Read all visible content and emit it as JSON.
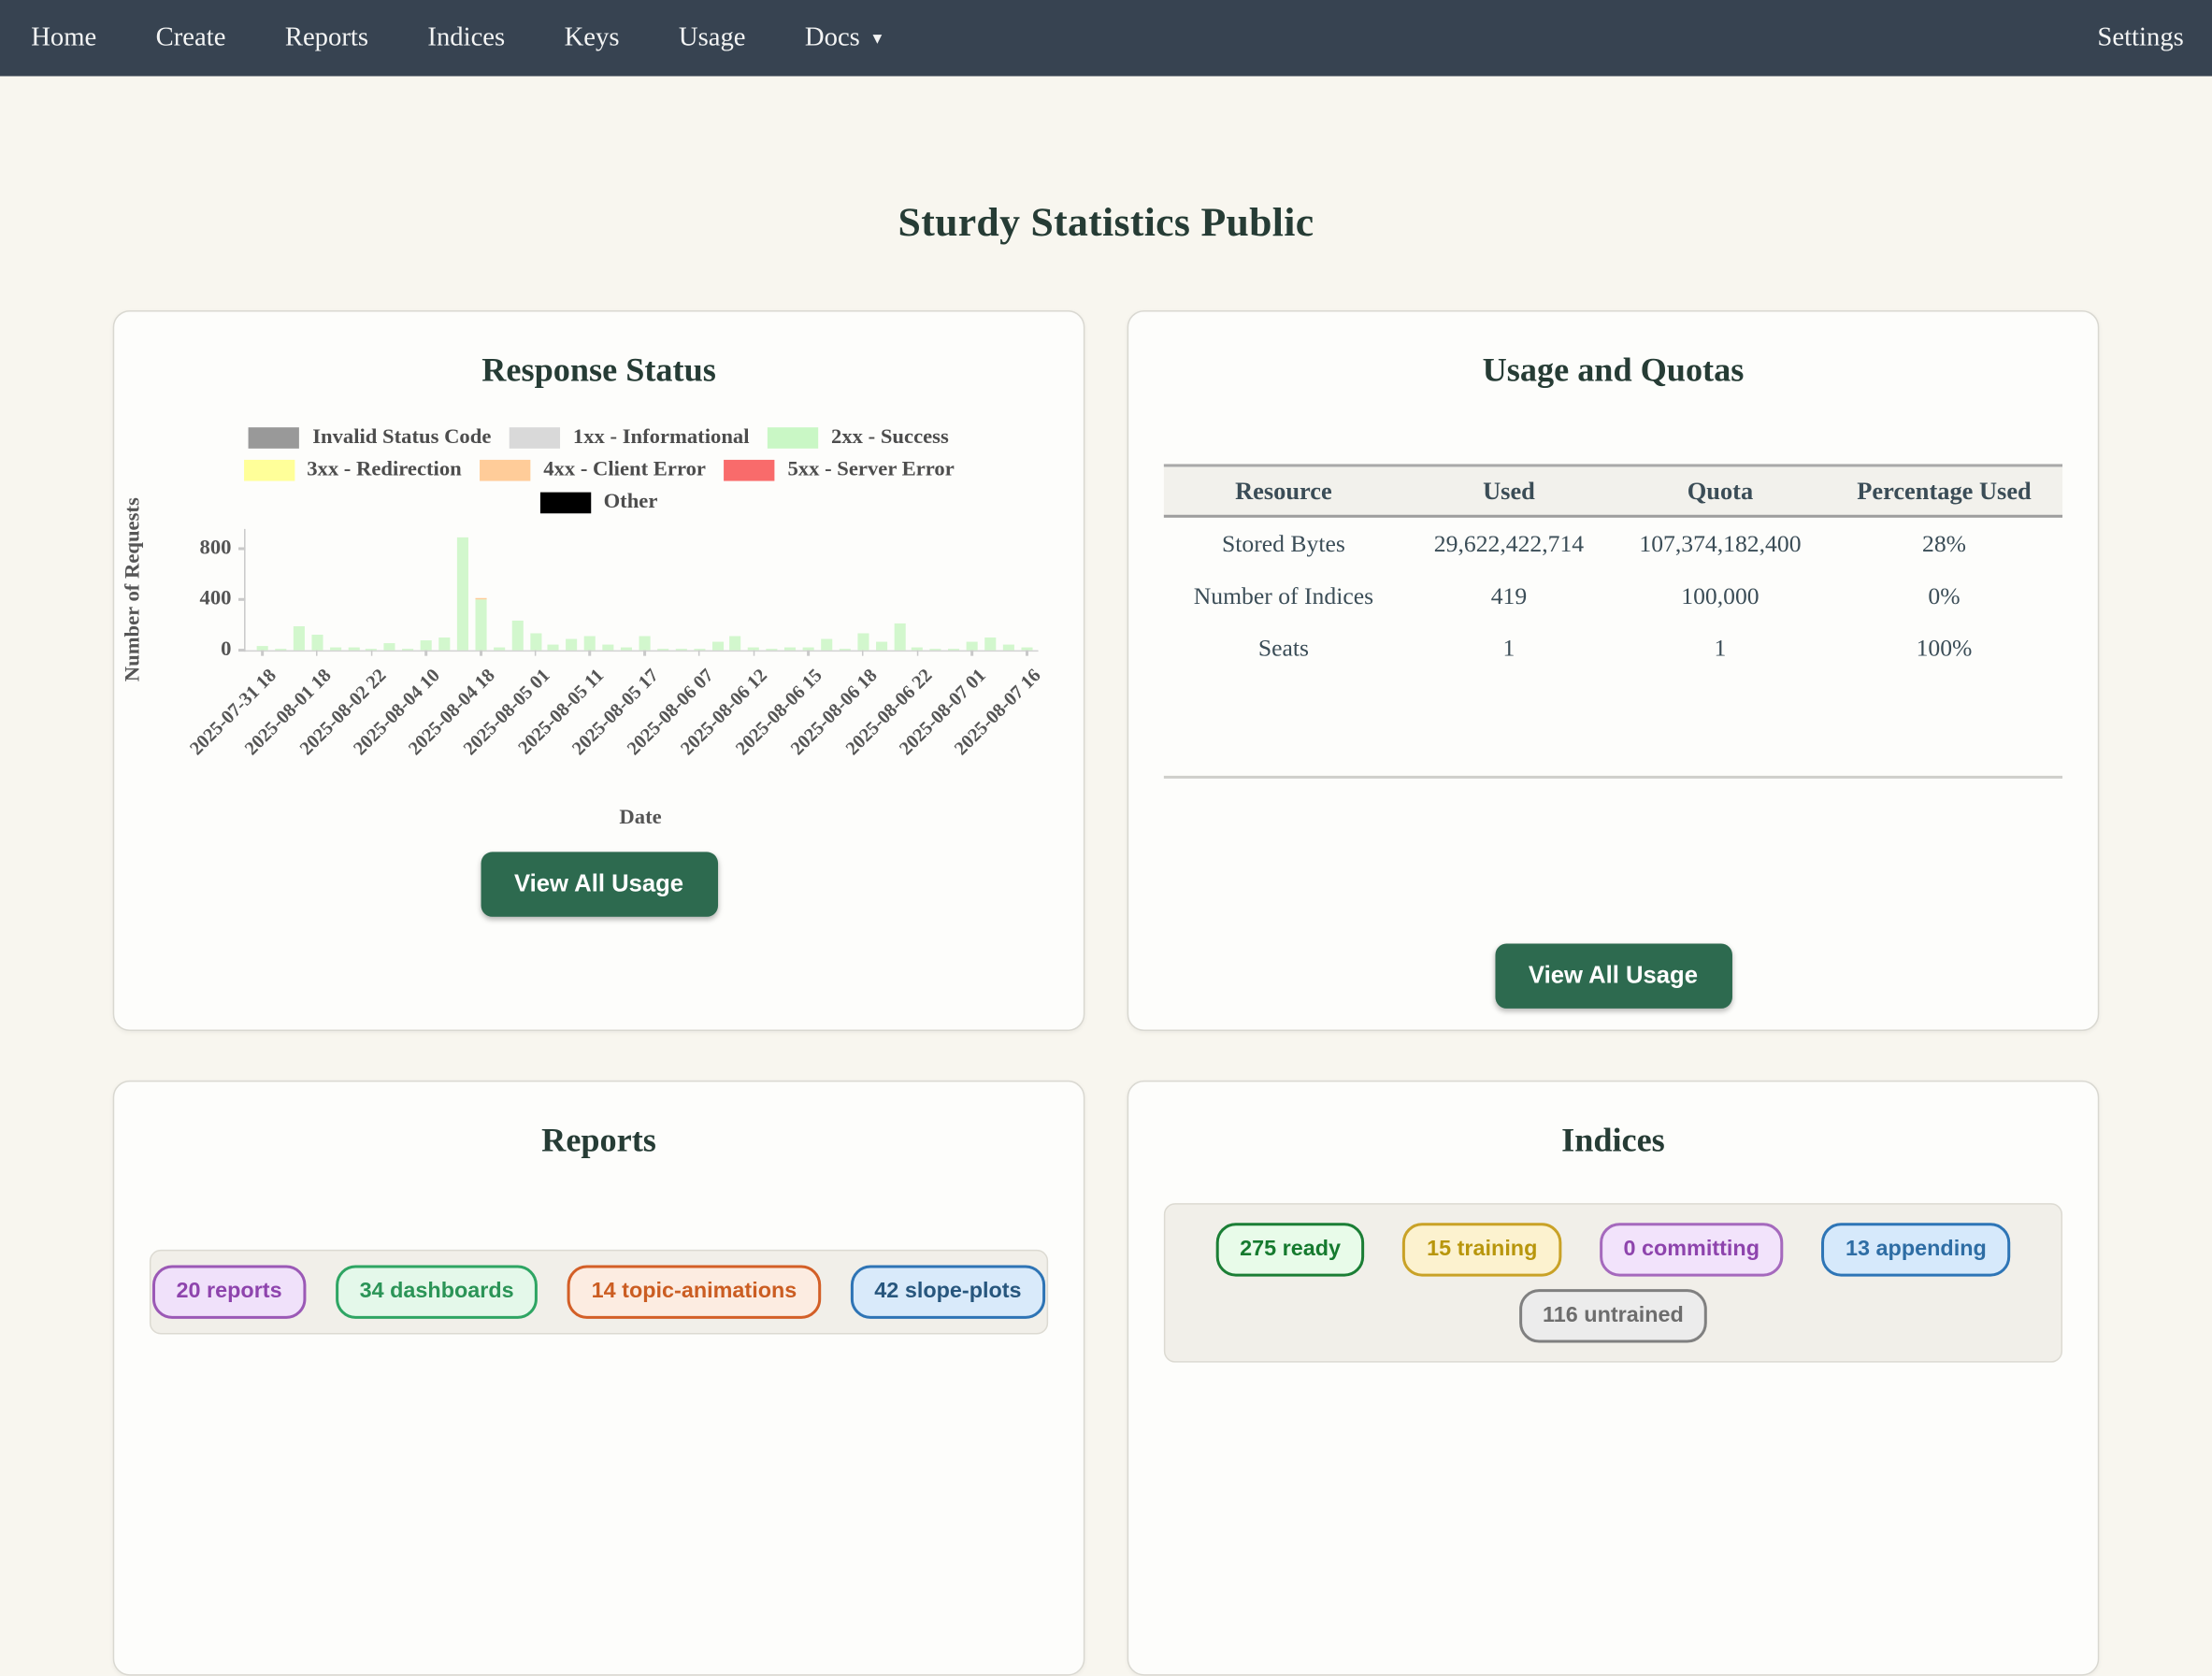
{
  "nav": {
    "items": [
      "Home",
      "Create",
      "Reports",
      "Indices",
      "Keys",
      "Usage",
      "Docs"
    ],
    "docs_caret": "▾",
    "settings": "Settings"
  },
  "page": {
    "title": "Sturdy Statistics Public"
  },
  "colors": {
    "navbar": "#374351",
    "page_background": "#f8f6ef",
    "accent_green": "#2d6a4f",
    "heading": "#263c35",
    "bar_fill": "#d2f7cd"
  },
  "chart_data": {
    "type": "bar",
    "title": "Response Status",
    "xlabel": "Date",
    "ylabel": "Number of Requests",
    "yticks": [
      0,
      400,
      800
    ],
    "ylim": [
      0,
      950
    ],
    "grid": false,
    "legend_position": "top",
    "legend": [
      {
        "label": "Invalid Status Code",
        "color": "#999999"
      },
      {
        "label": "1xx - Informational",
        "color": "#d9d9d9"
      },
      {
        "label": "2xx - Success",
        "color": "#c9f7c5"
      },
      {
        "label": "3xx - Redirection",
        "color": "#ffff99"
      },
      {
        "label": "4xx - Client Error",
        "color": "#ffcc99"
      },
      {
        "label": "5xx - Server Error",
        "color": "#f96b6b"
      },
      {
        "label": "Other",
        "color": "#000000"
      }
    ],
    "x_tick_labels": [
      "2025-07-31 18",
      "2025-08-01 18",
      "2025-08-02 22",
      "2025-08-04 10",
      "2025-08-04 18",
      "2025-08-05 01",
      "2025-08-05 11",
      "2025-08-05 17",
      "2025-08-06 07",
      "2025-08-06 12",
      "2025-08-06 15",
      "2025-08-06 18",
      "2025-08-06 22",
      "2025-08-07 01",
      "2025-08-07 16"
    ],
    "x_tick_every": 3,
    "series": [
      {
        "name": "2xx - Success",
        "values": [
          34,
          7,
          190,
          120,
          24,
          24,
          12,
          60,
          12,
          79,
          96,
          890,
          395,
          24,
          228,
          139,
          48,
          84,
          108,
          43,
          20,
          110,
          15,
          8,
          8,
          72,
          108,
          19,
          8,
          24,
          19,
          84,
          8,
          132,
          67,
          211,
          19,
          14,
          14,
          72,
          101,
          48,
          24
        ]
      },
      {
        "name": "4xx - Client Error",
        "values": [
          0,
          0,
          0,
          0,
          0,
          0,
          0,
          0,
          0,
          0,
          0,
          0,
          12,
          0,
          0,
          0,
          0,
          0,
          0,
          0,
          0,
          0,
          0,
          0,
          0,
          0,
          0,
          0,
          0,
          0,
          0,
          0,
          0,
          0,
          0,
          0,
          0,
          0,
          0,
          0,
          0,
          0,
          0
        ]
      }
    ]
  },
  "cards": {
    "response_status": {
      "title": "Response Status",
      "button": "View All Usage"
    },
    "usage_quotas": {
      "title": "Usage and Quotas",
      "button": "View All Usage",
      "table": {
        "headers": [
          "Resource",
          "Used",
          "Quota",
          "Percentage Used"
        ],
        "rows": [
          [
            "Stored Bytes",
            "29,622,422,714",
            "107,374,182,400",
            "28%"
          ],
          [
            "Number of Indices",
            "419",
            "100,000",
            "0%"
          ],
          [
            "Seats",
            "1",
            "1",
            "100%"
          ]
        ]
      }
    },
    "reports": {
      "title": "Reports",
      "badges": [
        {
          "label": "20 reports",
          "text": "#8e44ad",
          "border": "#9b59b6",
          "bg": "#f0e1fa"
        },
        {
          "label": "34 dashboards",
          "text": "#2b9457",
          "border": "#2ea563",
          "bg": "#e4f8ea"
        },
        {
          "label": "14 topic-animations",
          "text": "#cb5d22",
          "border": "#d35f27",
          "bg": "#fcece1"
        },
        {
          "label": "42 slope-plots",
          "text": "#27567d",
          "border": "#2e74b5",
          "bg": "#d9eafa"
        }
      ]
    },
    "indices": {
      "title": "Indices",
      "badges_row1": [
        {
          "label": "275 ready",
          "text": "#157a2e",
          "border": "#1b7e35",
          "bg": "#e8fbe9"
        },
        {
          "label": "15 training",
          "text": "#b8960c",
          "border": "#c9a227",
          "bg": "#fcf2cf"
        },
        {
          "label": "0 committing",
          "text": "#8e44ad",
          "border": "#a569bd",
          "bg": "#f2e3fb"
        },
        {
          "label": "13 appending",
          "text": "#2e6da4",
          "border": "#2e75b6",
          "bg": "#d6e9fb"
        }
      ],
      "badges_row2": [
        {
          "label": "116 untrained",
          "text": "#6d6d6d",
          "border": "#808080",
          "bg": "#ececec"
        }
      ]
    }
  }
}
